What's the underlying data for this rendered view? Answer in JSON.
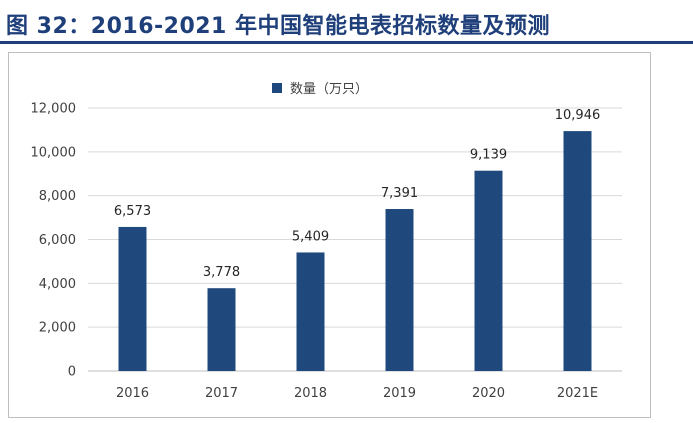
{
  "figure": {
    "title": "图 32：2016-2021 年中国智能电表招标数量及预测"
  },
  "chart_data": {
    "type": "bar",
    "categories": [
      "2016",
      "2017",
      "2018",
      "2019",
      "2020",
      "2021E"
    ],
    "series": [
      {
        "name": "数量（万只）",
        "values": [
          6573,
          3778,
          5409,
          7391,
          9139,
          10946
        ],
        "labels": [
          "6,573",
          "3,778",
          "5,409",
          "7,391",
          "9,139",
          "10,946"
        ],
        "color": "#1f497d"
      }
    ],
    "ylim": [
      0,
      12000
    ],
    "yticks": [
      0,
      2000,
      4000,
      6000,
      8000,
      10000,
      12000
    ],
    "ytick_labels": [
      "0",
      "2,000",
      "4,000",
      "6,000",
      "8,000",
      "10,000",
      "12,000"
    ],
    "grid": true,
    "legend_position": "top-center",
    "title": "",
    "xlabel": "",
    "ylabel": ""
  }
}
